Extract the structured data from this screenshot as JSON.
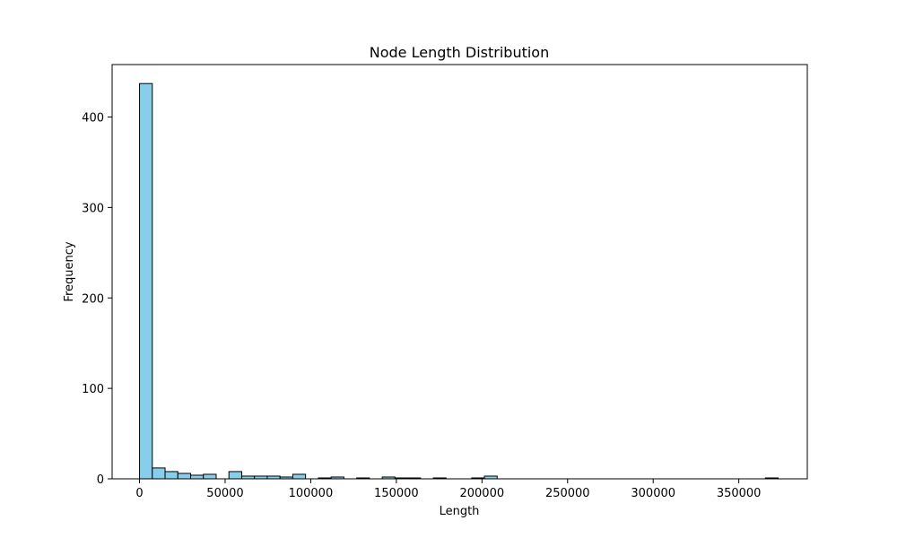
{
  "chart_data": {
    "type": "bar",
    "title": "Node Length Distribution",
    "xlabel": "Length",
    "ylabel": "Frequency",
    "xlim": [
      -16000,
      390000
    ],
    "ylim": [
      0,
      458
    ],
    "grid": false,
    "legend": "none",
    "bin_width": 7460,
    "x_start": 0,
    "values": [
      437,
      12,
      8,
      6,
      4,
      5,
      0,
      8,
      3,
      3,
      3,
      2,
      5,
      0,
      1,
      2,
      0,
      1,
      0,
      2,
      1,
      1,
      0,
      1,
      0,
      0,
      1,
      3,
      0,
      0,
      0,
      0,
      0,
      0,
      0,
      0,
      0,
      0,
      0,
      0,
      0,
      0,
      0,
      0,
      0,
      0,
      0,
      0,
      0,
      1
    ],
    "x_ticks": [
      0,
      50000,
      100000,
      150000,
      200000,
      250000,
      300000,
      350000
    ],
    "y_ticks": [
      0,
      100,
      200,
      300,
      400
    ],
    "bar_color": "#87ceeb",
    "edge_color": "#000000"
  }
}
